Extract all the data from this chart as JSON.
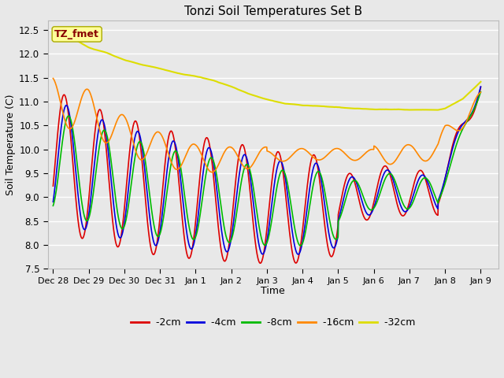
{
  "title": "Tonzi Soil Temperatures Set B",
  "xlabel": "Time",
  "ylabel": "Soil Temperature (C)",
  "ylim": [
    7.5,
    12.7
  ],
  "bg_color": "#e8e8e8",
  "series_colors": {
    "-2cm": "#dd0000",
    "-4cm": "#0000dd",
    "-8cm": "#00bb00",
    "-16cm": "#ff8800",
    "-32cm": "#dddd00"
  },
  "annotation_text": "TZ_fmet",
  "annotation_color": "#880000",
  "annotation_bg": "#ffff99",
  "tick_labels": [
    "Dec 28",
    "Dec 29",
    "Dec 30",
    "Dec 31",
    "Jan 1",
    "Jan 2",
    "Jan 3",
    "Jan 4",
    "Jan 5",
    "Jan 6",
    "Jan 7",
    "Jan 8",
    "Jan 9"
  ],
  "tick_positions": [
    0,
    1,
    2,
    3,
    4,
    5,
    6,
    7,
    8,
    9,
    10,
    11,
    12
  ]
}
